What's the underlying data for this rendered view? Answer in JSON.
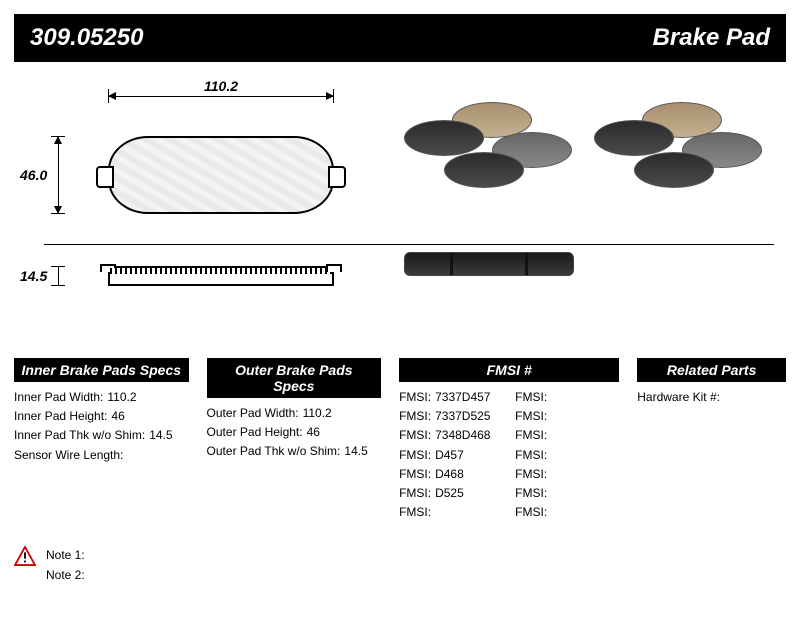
{
  "header": {
    "part_number": "309.05250",
    "product_type": "Brake Pad"
  },
  "dimensions": {
    "width": "110.2",
    "height": "46.0",
    "thickness": "14.5"
  },
  "inner_specs": {
    "title": "Inner Brake Pads Specs",
    "rows": [
      {
        "label": "Inner Pad Width:",
        "value": "110.2"
      },
      {
        "label": "Inner Pad Height:",
        "value": "46"
      },
      {
        "label": "Inner Pad Thk w/o Shim:",
        "value": "14.5"
      },
      {
        "label": "Sensor Wire Length:",
        "value": ""
      }
    ]
  },
  "outer_specs": {
    "title": "Outer Brake Pads Specs",
    "rows": [
      {
        "label": "Outer Pad Width:",
        "value": "110.2"
      },
      {
        "label": "Outer Pad Height:",
        "value": "46"
      },
      {
        "label": "Outer Pad Thk w/o Shim:",
        "value": "14.5"
      }
    ]
  },
  "fmsi": {
    "title": "FMSI #",
    "label": "FMSI:",
    "values": [
      "7337D457",
      "7337D525",
      "7348D468",
      "D457",
      "D468",
      "D525",
      "",
      "",
      "",
      "",
      "",
      "",
      "",
      ""
    ]
  },
  "related": {
    "title": "Related Parts",
    "hardware_kit_label": "Hardware Kit #:",
    "hardware_kit_value": ""
  },
  "notes": {
    "note1_label": "Note 1:",
    "note1_value": "",
    "note2_label": "Note 2:",
    "note2_value": ""
  },
  "colors": {
    "header_bg": "#000000",
    "header_fg": "#ffffff",
    "text": "#000000"
  }
}
